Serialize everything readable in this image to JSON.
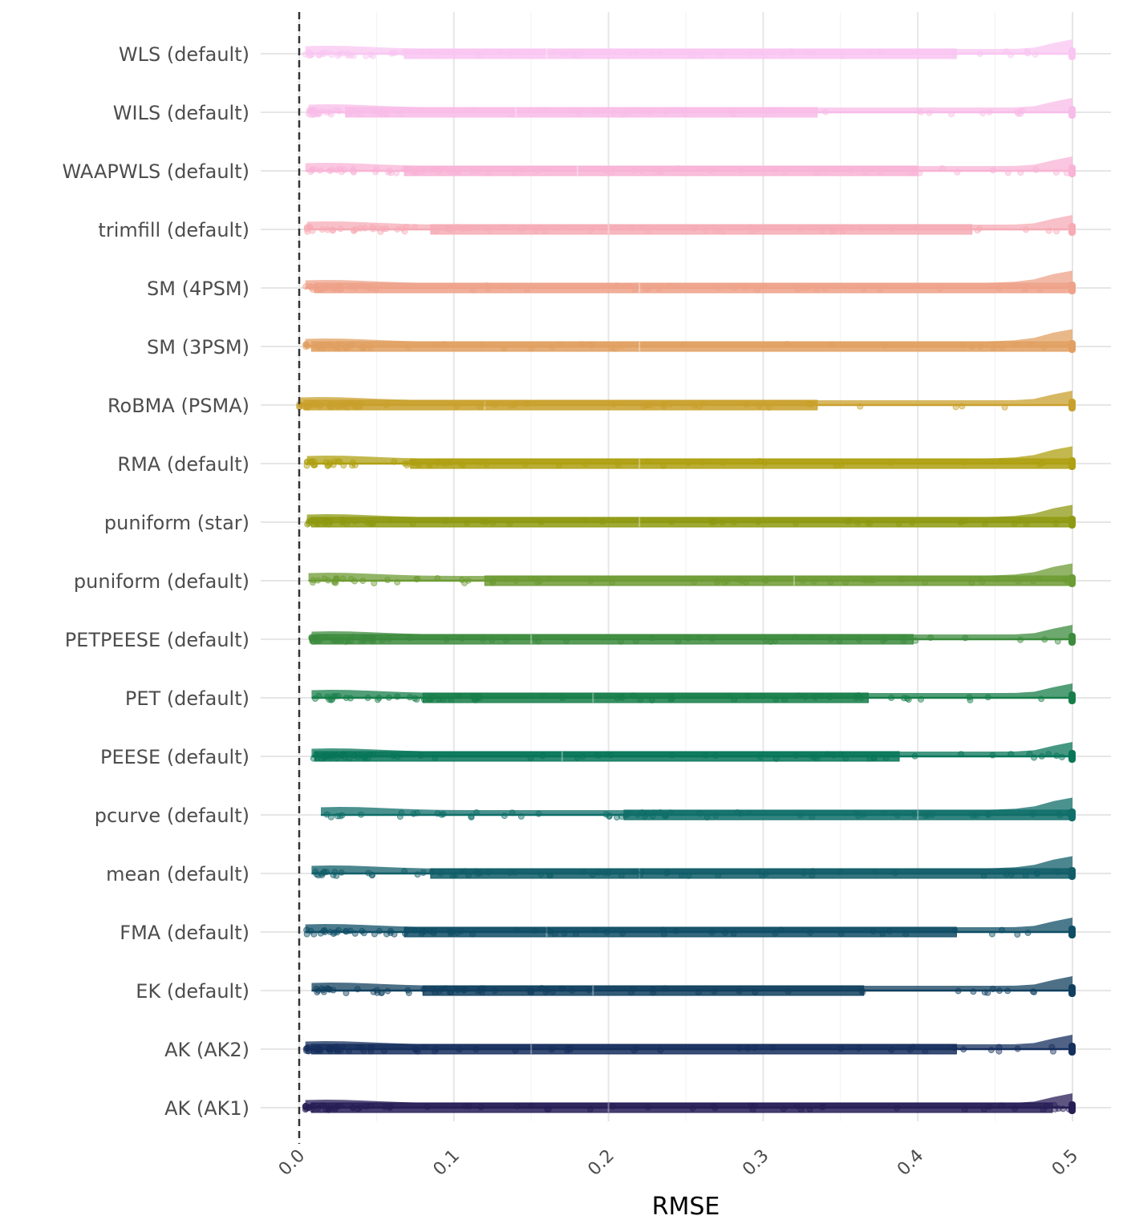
{
  "chart_data": {
    "type": "raincloud",
    "xlabel": "RMSE",
    "xlim": [
      0.0,
      0.5
    ],
    "xticks": [
      "0.0",
      "0.1",
      "0.2",
      "0.3",
      "0.4",
      "0.5"
    ],
    "xtick_values": [
      0.0,
      0.1,
      0.2,
      0.3,
      0.4,
      0.5
    ],
    "reference_line": {
      "x": 0.0,
      "style": "dashed",
      "color": "#333333"
    },
    "grid": true,
    "legend": "none",
    "series": [
      {
        "label": "WLS (default)",
        "color": "#F9C6F2",
        "min": 0.004,
        "q1": 0.068,
        "median": 0.16,
        "q3": 0.425,
        "max": 0.5
      },
      {
        "label": "WILS (default)",
        "color": "#F8BCE8",
        "min": 0.006,
        "q1": 0.03,
        "median": 0.14,
        "q3": 0.335,
        "max": 0.5
      },
      {
        "label": "WAAPWLS (default)",
        "color": "#F8B3D6",
        "min": 0.004,
        "q1": 0.068,
        "median": 0.18,
        "q3": 0.4,
        "max": 0.5
      },
      {
        "label": "trimfill (default)",
        "color": "#F6ABB5",
        "min": 0.005,
        "q1": 0.085,
        "median": 0.2,
        "q3": 0.435,
        "max": 0.5
      },
      {
        "label": "SM (4PSM)",
        "color": "#EEA289",
        "min": 0.004,
        "q1": 0.01,
        "median": 0.22,
        "q3": 0.5,
        "max": 0.5
      },
      {
        "label": "SM (3PSM)",
        "color": "#E1A062",
        "min": 0.004,
        "q1": 0.008,
        "median": 0.22,
        "q3": 0.5,
        "max": 0.5
      },
      {
        "label": "RoBMA (PSMA)",
        "color": "#C9A02D",
        "min": 0.0,
        "q1": 0.003,
        "median": 0.12,
        "q3": 0.335,
        "max": 0.5
      },
      {
        "label": "RMA (default)",
        "color": "#AFA012",
        "min": 0.005,
        "q1": 0.072,
        "median": 0.22,
        "q3": 0.5,
        "max": 0.5
      },
      {
        "label": "puniform (star)",
        "color": "#8E9A11",
        "min": 0.005,
        "q1": 0.008,
        "median": 0.22,
        "q3": 0.5,
        "max": 0.5
      },
      {
        "label": "puniform (default)",
        "color": "#6D9B34",
        "min": 0.006,
        "q1": 0.12,
        "median": 0.32,
        "q3": 0.5,
        "max": 0.5
      },
      {
        "label": "PETPEESE (default)",
        "color": "#3C8B3D",
        "min": 0.008,
        "q1": 0.01,
        "median": 0.15,
        "q3": 0.397,
        "max": 0.5
      },
      {
        "label": "PET (default)",
        "color": "#177E4A",
        "min": 0.008,
        "q1": 0.08,
        "median": 0.19,
        "q3": 0.368,
        "max": 0.5
      },
      {
        "label": "PEESE (default)",
        "color": "#087659",
        "min": 0.008,
        "q1": 0.01,
        "median": 0.17,
        "q3": 0.388,
        "max": 0.5
      },
      {
        "label": "pcurve (default)",
        "color": "#0F6E69",
        "min": 0.014,
        "q1": 0.21,
        "median": 0.4,
        "q3": 0.5,
        "max": 0.5
      },
      {
        "label": "mean (default)",
        "color": "#105D68",
        "min": 0.008,
        "q1": 0.085,
        "median": 0.22,
        "q3": 0.5,
        "max": 0.5
      },
      {
        "label": "FMA (default)",
        "color": "#0F4E66",
        "min": 0.004,
        "q1": 0.068,
        "median": 0.16,
        "q3": 0.425,
        "max": 0.5
      },
      {
        "label": "EK (default)",
        "color": "#11405F",
        "min": 0.008,
        "q1": 0.08,
        "median": 0.19,
        "q3": 0.365,
        "max": 0.5
      },
      {
        "label": "AK (AK2)",
        "color": "#162F5D",
        "min": 0.004,
        "q1": 0.008,
        "median": 0.15,
        "q3": 0.425,
        "max": 0.5
      },
      {
        "label": "AK (AK1)",
        "color": "#281E57",
        "min": 0.004,
        "q1": 0.008,
        "median": 0.2,
        "q3": 0.487,
        "max": 0.5
      }
    ]
  }
}
